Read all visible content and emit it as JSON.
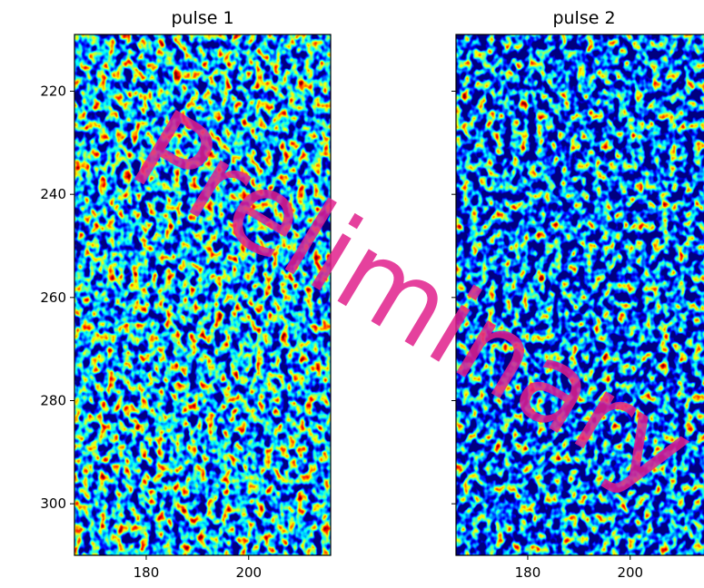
{
  "chart_data": [
    {
      "type": "heatmap",
      "title": "pulse 1",
      "xlim": [
        166,
        216
      ],
      "xticks": [
        180,
        200
      ],
      "ylim": [
        310,
        209
      ],
      "yticks": [
        220,
        240,
        260,
        280,
        300
      ],
      "ytick_labels": true,
      "colormap": "jet"
    },
    {
      "type": "heatmap",
      "title": "pulse 2",
      "xlim": [
        166,
        216
      ],
      "xticks": [
        180,
        200
      ],
      "ylim": [
        310,
        209
      ],
      "yticks": [
        220,
        240,
        260,
        280,
        300
      ],
      "ytick_labels": false,
      "colormap": "jet"
    }
  ],
  "annotation": "Preliminary"
}
